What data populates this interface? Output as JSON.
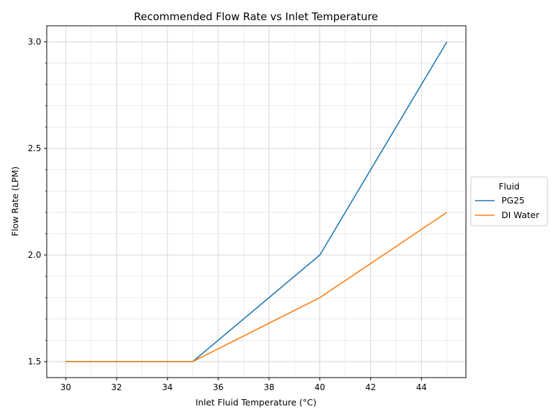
{
  "chart_data": {
    "type": "line",
    "title": "Recommended Flow Rate vs Inlet Temperature",
    "xlabel": "Inlet Fluid Temperature (°C)",
    "ylabel": "Flow Rate (LPM)",
    "xlim": [
      29.25,
      45.75
    ],
    "ylim": [
      1.425,
      3.075
    ],
    "xticks": [
      30,
      32,
      34,
      36,
      38,
      40,
      42,
      44
    ],
    "yticks": [
      1.5,
      2.0,
      2.5,
      3.0
    ],
    "xtick_labels": [
      "30",
      "32",
      "34",
      "36",
      "38",
      "40",
      "42",
      "44"
    ],
    "ytick_labels": [
      "1.5",
      "2.0",
      "2.5",
      "3.0"
    ],
    "x_minor_step": 1,
    "y_minor_step": 0.1,
    "grid": true,
    "legend": {
      "title": "Fluid",
      "placement": "outside-right-center"
    },
    "series": [
      {
        "name": "PG25",
        "color": "#1f77b4",
        "x": [
          30,
          35,
          40,
          45
        ],
        "y": [
          1.5,
          1.5,
          2.0,
          3.0
        ]
      },
      {
        "name": "DI Water",
        "color": "#ff7f0e",
        "x": [
          30,
          35,
          40,
          45
        ],
        "y": [
          1.5,
          1.5,
          1.8,
          2.2
        ]
      }
    ]
  }
}
